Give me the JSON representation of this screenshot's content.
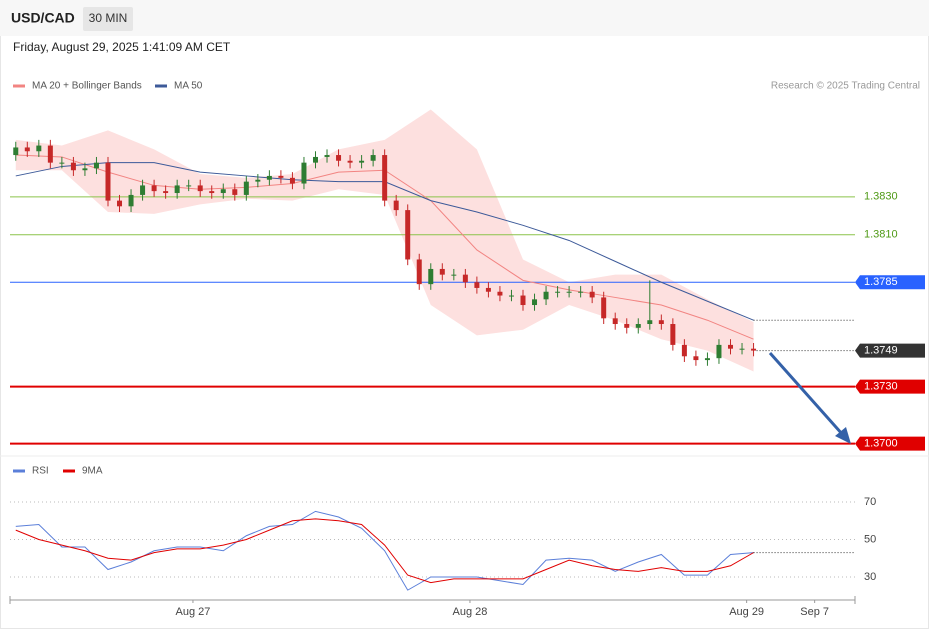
{
  "header": {
    "title": "USD/CAD",
    "timeframe": "30 MIN",
    "datetime": "Friday, August 29, 2025 1:41:09 AM CET",
    "credit": "Research © 2025 Trading Central"
  },
  "chart_data": [
    {
      "type": "candlestick",
      "xlim": [
        -0.5,
        72.8
      ],
      "xticks": [
        {
          "value": 15.37,
          "label": "Aug 27"
        },
        {
          "value": 39.4,
          "label": "Aug 28"
        },
        {
          "value": 63.4,
          "label": "Aug 29"
        },
        {
          "value": 69.3,
          "label": "Sep 7"
        }
      ],
      "ylim": [
        1.3694,
        1.3881
      ],
      "up_color": "#2e7d32",
      "down_color": "#c62828",
      "open": [
        1.3852,
        1.3856,
        1.3854,
        1.3857,
        1.3848,
        1.3848,
        1.3844,
        1.3845,
        1.3848,
        1.3828,
        1.3825,
        1.3831,
        1.3836,
        1.3833,
        1.3832,
        1.3836,
        1.3836,
        1.3833,
        1.3832,
        1.3834,
        1.3831,
        1.3838,
        1.3839,
        1.3841,
        1.384,
        1.3837,
        1.3848,
        1.3851,
        1.3852,
        1.3849,
        1.3848,
        1.3849,
        1.3852,
        1.3828,
        1.3823,
        1.3797,
        1.3784,
        1.3792,
        1.3789,
        1.3789,
        1.3785,
        1.3782,
        1.378,
        1.3778,
        1.3778,
        1.3773,
        1.3776,
        1.378,
        1.378,
        1.378,
        1.378,
        1.3777,
        1.3766,
        1.3763,
        1.3761,
        1.3763,
        1.3765,
        1.3763,
        1.3752,
        1.3746,
        1.3744,
        1.3745,
        1.3752,
        1.375,
        1.375
      ],
      "high": [
        1.3859,
        1.3859,
        1.386,
        1.386,
        1.3851,
        1.3851,
        1.3848,
        1.3851,
        1.3851,
        1.3831,
        1.3834,
        1.3839,
        1.3839,
        1.3836,
        1.3839,
        1.3839,
        1.3839,
        1.3836,
        1.3837,
        1.3837,
        1.3841,
        1.3842,
        1.3844,
        1.3844,
        1.3843,
        1.3851,
        1.3854,
        1.3855,
        1.3855,
        1.3852,
        1.3852,
        1.3855,
        1.3855,
        1.3831,
        1.3826,
        1.38,
        1.3795,
        1.3795,
        1.3792,
        1.3792,
        1.3788,
        1.3785,
        1.3783,
        1.3781,
        1.3781,
        1.3779,
        1.3783,
        1.3783,
        1.3783,
        1.3783,
        1.3783,
        1.378,
        1.3769,
        1.3766,
        1.3766,
        1.3786,
        1.3768,
        1.3766,
        1.3755,
        1.3749,
        1.3748,
        1.3755,
        1.3755,
        1.3753,
        1.3753
      ],
      "low": [
        1.3849,
        1.3851,
        1.3851,
        1.3845,
        1.3845,
        1.3841,
        1.3841,
        1.3842,
        1.3825,
        1.3822,
        1.3822,
        1.3828,
        1.383,
        1.3829,
        1.3829,
        1.3833,
        1.383,
        1.3829,
        1.3829,
        1.3828,
        1.3828,
        1.3835,
        1.3836,
        1.3837,
        1.3834,
        1.3834,
        1.3845,
        1.3848,
        1.3846,
        1.3845,
        1.3845,
        1.3846,
        1.3825,
        1.382,
        1.3794,
        1.3781,
        1.3781,
        1.3786,
        1.3786,
        1.3782,
        1.3779,
        1.3777,
        1.3775,
        1.3775,
        1.377,
        1.377,
        1.3773,
        1.3777,
        1.3777,
        1.3777,
        1.3774,
        1.3763,
        1.376,
        1.3758,
        1.3758,
        1.376,
        1.376,
        1.3749,
        1.3743,
        1.3741,
        1.3741,
        1.3742,
        1.3747,
        1.3747,
        1.3746
      ],
      "close": [
        1.3856,
        1.3854,
        1.3857,
        1.3848,
        1.3848,
        1.3844,
        1.3845,
        1.3848,
        1.3828,
        1.3825,
        1.3831,
        1.3836,
        1.3833,
        1.3832,
        1.3836,
        1.3836,
        1.3833,
        1.3832,
        1.3834,
        1.3831,
        1.3838,
        1.3839,
        1.3841,
        1.384,
        1.3837,
        1.3848,
        1.3851,
        1.3852,
        1.3849,
        1.3848,
        1.3849,
        1.3852,
        1.3828,
        1.3823,
        1.3797,
        1.3784,
        1.3792,
        1.3789,
        1.3789,
        1.3785,
        1.3782,
        1.378,
        1.3778,
        1.3778,
        1.3773,
        1.3776,
        1.378,
        1.378,
        1.378,
        1.378,
        1.3777,
        1.3766,
        1.3763,
        1.3761,
        1.3763,
        1.3765,
        1.3763,
        1.3752,
        1.3746,
        1.3744,
        1.3745,
        1.3752,
        1.375,
        1.375,
        1.3749
      ],
      "series": [
        {
          "name": "MA 20 + Bollinger Bands",
          "color": "#f28482",
          "band_color": "#fde0df",
          "x": [
            0,
            4,
            8,
            12,
            16,
            20,
            24,
            28,
            32,
            36,
            40,
            44,
            48,
            52,
            56,
            60,
            64
          ],
          "values": [
            1.3852,
            1.3851,
            1.3843,
            1.3836,
            1.3834,
            1.3835,
            1.3837,
            1.3843,
            1.3844,
            1.3828,
            1.3802,
            1.3786,
            1.3781,
            1.3777,
            1.3773,
            1.3765,
            1.3755
          ],
          "upper": [
            1.386,
            1.3857,
            1.3865,
            1.3855,
            1.3842,
            1.384,
            1.3842,
            1.3855,
            1.386,
            1.3876,
            1.3855,
            1.3797,
            1.3785,
            1.3789,
            1.3789,
            1.3776,
            1.3764
          ],
          "lower": [
            1.3844,
            1.3844,
            1.3822,
            1.3821,
            1.3826,
            1.3829,
            1.3828,
            1.3834,
            1.3831,
            1.3773,
            1.3757,
            1.376,
            1.3773,
            1.3765,
            1.3755,
            1.3749,
            1.3738
          ]
        },
        {
          "name": "MA 50",
          "color": "#3d5a99",
          "x": [
            0,
            4,
            8,
            12,
            16,
            20,
            24,
            28,
            32,
            36,
            40,
            44,
            48,
            52,
            56,
            60,
            64
          ],
          "values": [
            1.3841,
            1.3846,
            1.3848,
            1.3848,
            1.3843,
            1.3841,
            1.3839,
            1.3838,
            1.3838,
            1.3828,
            1.3822,
            1.3815,
            1.3807,
            1.3796,
            1.3785,
            1.3775,
            1.3765
          ]
        }
      ],
      "levels": [
        {
          "value": 1.383,
          "label": "1.3830",
          "color": "#8bc34a",
          "text_color": "#4f9a16",
          "boxed": false,
          "dotted": false
        },
        {
          "value": 1.381,
          "label": "1.3810",
          "color": "#8bc34a",
          "text_color": "#4f9a16",
          "boxed": false,
          "dotted": false
        },
        {
          "value": 1.3785,
          "color": "#2962ff",
          "text_color": "#ffffff",
          "boxed": true,
          "dotted": false
        },
        {
          "value": 1.3749,
          "color": "#333333",
          "text_color": "#ffffff",
          "boxed": true,
          "dotted": true
        },
        {
          "value": 1.373,
          "label": "1.3730",
          "color": "#e00000",
          "text_color": "#ffffff",
          "boxed": true,
          "dotted": false
        },
        {
          "value": 1.37,
          "label": "1.3700",
          "color": "#e00000",
          "text_color": "#ffffff",
          "boxed": true,
          "dotted": false
        }
      ]
    },
    {
      "type": "line",
      "xlim": [
        -0.5,
        72.8
      ],
      "ylim": [
        18,
        92
      ],
      "yticks": [
        30,
        50,
        70
      ],
      "series": [
        {
          "name": "RSI",
          "color": "#5b7fd9",
          "x": [
            0,
            2,
            4,
            6,
            8,
            10,
            12,
            14,
            16,
            18,
            20,
            22,
            24,
            26,
            28,
            30,
            32,
            34,
            36,
            38,
            40,
            42,
            44,
            46,
            48,
            50,
            52,
            54,
            56,
            58,
            60,
            62,
            64
          ],
          "values": [
            57,
            58,
            46,
            46,
            34,
            38,
            44,
            46,
            46,
            44,
            52,
            57,
            58,
            65,
            62,
            56,
            44,
            23,
            30,
            30,
            30,
            28,
            26,
            39,
            40,
            39,
            33,
            38,
            42,
            31,
            31,
            42,
            43
          ]
        },
        {
          "name": "9MA",
          "color": "#e00000",
          "x": [
            0,
            2,
            4,
            6,
            8,
            10,
            12,
            14,
            16,
            18,
            20,
            22,
            24,
            26,
            28,
            30,
            32,
            34,
            36,
            38,
            40,
            42,
            44,
            46,
            48,
            50,
            52,
            54,
            56,
            58,
            60,
            62,
            64
          ],
          "values": [
            55,
            50,
            47,
            44,
            40,
            39,
            43,
            45,
            45,
            47,
            50,
            55,
            60,
            61,
            60,
            58,
            47,
            31,
            27,
            29,
            29,
            29,
            29,
            34,
            39,
            36,
            34,
            33,
            35,
            33,
            33,
            36,
            43
          ]
        }
      ]
    }
  ]
}
